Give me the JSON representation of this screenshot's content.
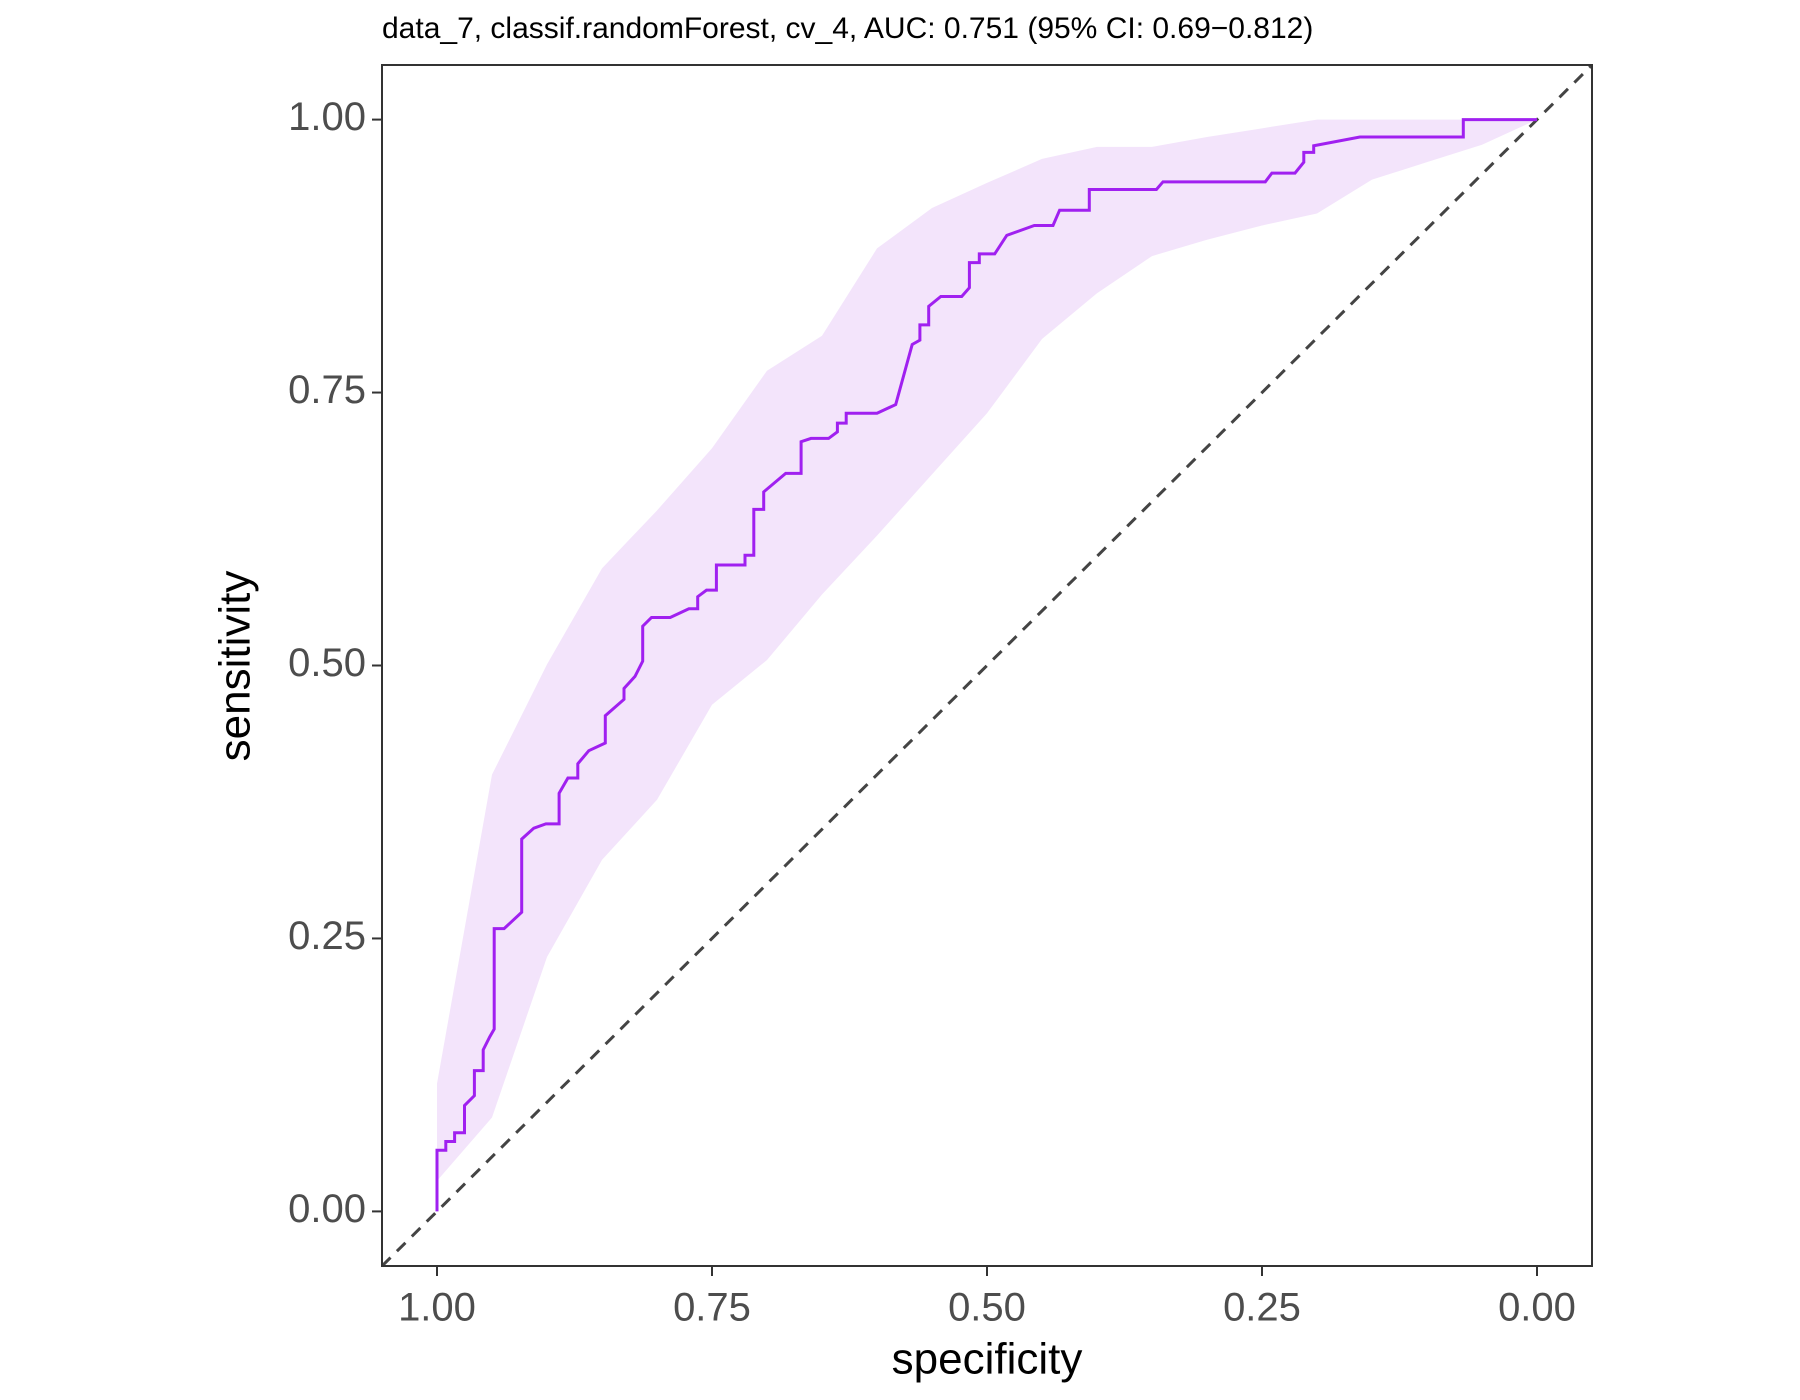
{
  "chart_data": {
    "type": "line",
    "title": "data_7, classif.randomForest, cv_4, AUC: 0.751 (95% CI: 0.69−0.812)",
    "xlabel": "specificity",
    "ylabel": "sensitivity",
    "xlim": [
      1.05,
      -0.05
    ],
    "ylim": [
      -0.05,
      1.05
    ],
    "xticks": [
      {
        "value": 1,
        "label": "1.00"
      },
      {
        "value": 0.75,
        "label": "0.75"
      },
      {
        "value": 0.5,
        "label": "0.50"
      },
      {
        "value": 0.25,
        "label": "0.25"
      },
      {
        "value": 0,
        "label": "0.00"
      }
    ],
    "yticks": [
      {
        "value": 0,
        "label": "0.00"
      },
      {
        "value": 0.25,
        "label": "0.25"
      },
      {
        "value": 0.5,
        "label": "0.50"
      },
      {
        "value": 0.75,
        "label": "0.75"
      },
      {
        "value": 1,
        "label": "1.00"
      }
    ],
    "grid": false,
    "series": [
      {
        "color": "#a020f0",
        "x": [
          1.0,
          1.0,
          0.992,
          0.992,
          0.984,
          0.984,
          0.975,
          0.975,
          0.966,
          0.966,
          0.958,
          0.958,
          0.952,
          0.948,
          0.948,
          0.939,
          0.923,
          0.923,
          0.912,
          0.901,
          0.889,
          0.889,
          0.881,
          0.872,
          0.872,
          0.862,
          0.847,
          0.847,
          0.83,
          0.83,
          0.82,
          0.813,
          0.813,
          0.805,
          0.788,
          0.771,
          0.763,
          0.763,
          0.755,
          0.746,
          0.746,
          0.72,
          0.72,
          0.712,
          0.712,
          0.703,
          0.703,
          0.683,
          0.669,
          0.669,
          0.66,
          0.644,
          0.636,
          0.636,
          0.628,
          0.628,
          0.6,
          0.583,
          0.568,
          0.561,
          0.561,
          0.553,
          0.553,
          0.542,
          0.523,
          0.516,
          0.516,
          0.507,
          0.507,
          0.493,
          0.482,
          0.457,
          0.44,
          0.434,
          0.407,
          0.407,
          0.346,
          0.34,
          0.247,
          0.241,
          0.22,
          0.212,
          0.212,
          0.203,
          0.203,
          0.161,
          0.067,
          0.067,
          0.0
        ],
        "values": [
          0,
          0.056,
          0.056,
          0.064,
          0.064,
          0.072,
          0.072,
          0.097,
          0.106,
          0.129,
          0.129,
          0.148,
          0.16,
          0.167,
          0.259,
          0.259,
          0.274,
          0.341,
          0.351,
          0.355,
          0.355,
          0.383,
          0.397,
          0.397,
          0.41,
          0.422,
          0.429,
          0.454,
          0.469,
          0.479,
          0.49,
          0.504,
          0.536,
          0.544,
          0.544,
          0.552,
          0.552,
          0.563,
          0.569,
          0.569,
          0.592,
          0.592,
          0.601,
          0.601,
          0.643,
          0.643,
          0.659,
          0.676,
          0.676,
          0.705,
          0.708,
          0.708,
          0.714,
          0.722,
          0.722,
          0.731,
          0.731,
          0.739,
          0.794,
          0.798,
          0.812,
          0.812,
          0.829,
          0.838,
          0.838,
          0.846,
          0.869,
          0.869,
          0.877,
          0.877,
          0.894,
          0.903,
          0.903,
          0.917,
          0.917,
          0.936,
          0.936,
          0.943,
          0.943,
          0.951,
          0.951,
          0.961,
          0.97,
          0.97,
          0.976,
          0.984,
          0.984,
          1.0,
          1.0
        ]
      }
    ],
    "ci": {
      "color": "#f3e4fb",
      "x": [
        1.0,
        0.95,
        0.9,
        0.85,
        0.8,
        0.75,
        0.7,
        0.65,
        0.6,
        0.55,
        0.5,
        0.45,
        0.4,
        0.35,
        0.3,
        0.25,
        0.2,
        0.15,
        0.1,
        0.05,
        0.0
      ],
      "upper": [
        0.117,
        0.4,
        0.501,
        0.589,
        0.642,
        0.699,
        0.77,
        0.802,
        0.882,
        0.919,
        0.942,
        0.964,
        0.975,
        0.975,
        0.984,
        0.992,
        1.0,
        1.0,
        1.0,
        1.0,
        1.0
      ],
      "lower": [
        0.028,
        0.086,
        0.233,
        0.322,
        0.377,
        0.464,
        0.505,
        0.565,
        0.619,
        0.675,
        0.731,
        0.799,
        0.841,
        0.875,
        0.89,
        0.903,
        0.914,
        0.945,
        0.961,
        0.977,
        1.0
      ]
    },
    "reference_line": {
      "color": "#444444",
      "dashed": true
    }
  }
}
